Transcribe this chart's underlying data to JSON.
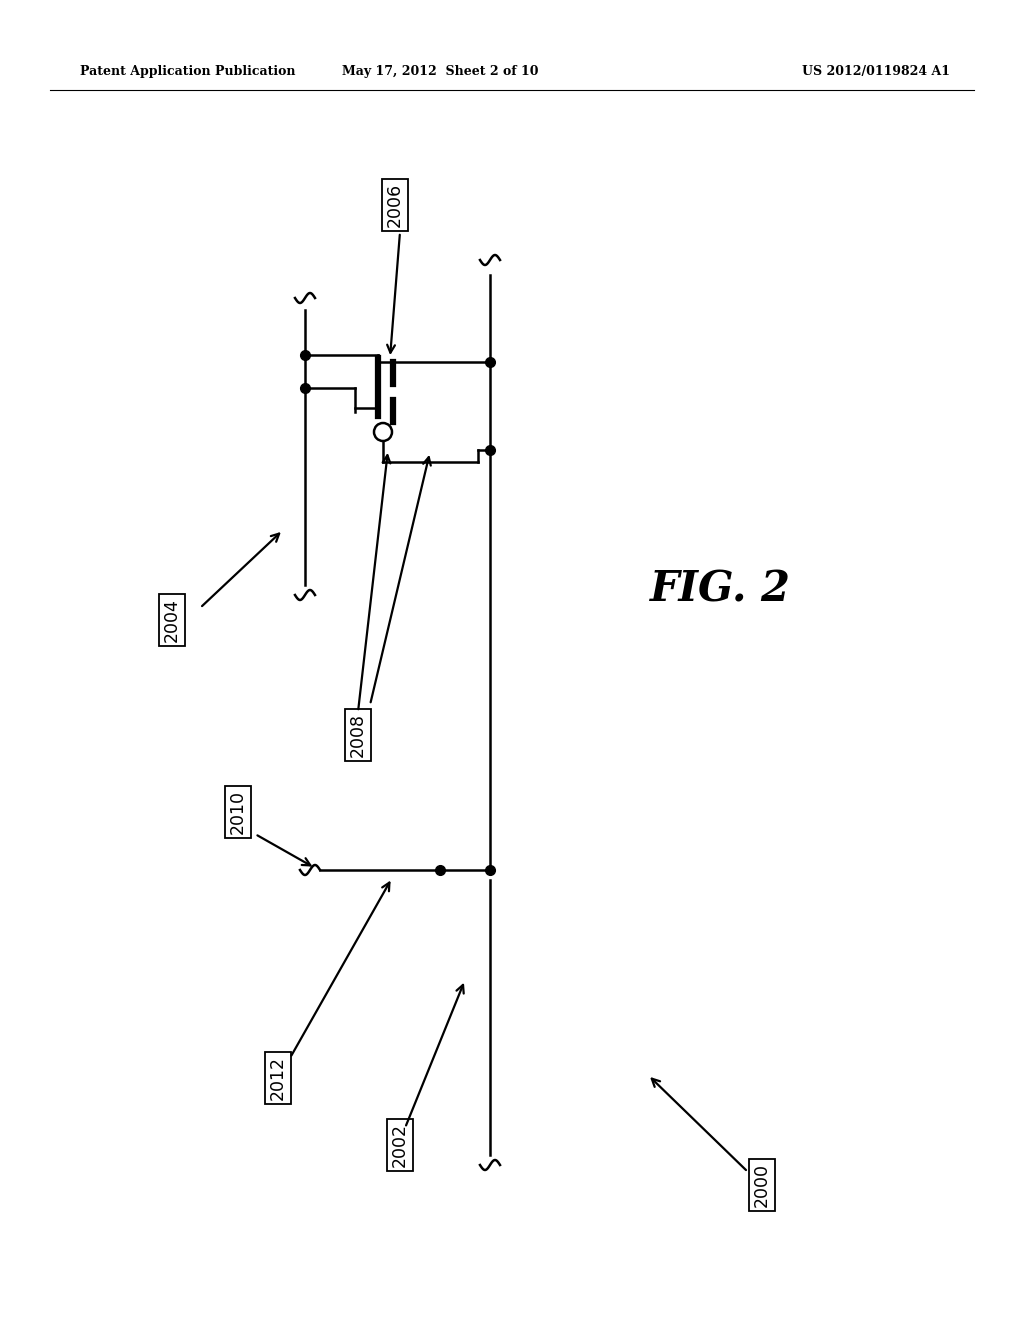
{
  "bg_color": "#ffffff",
  "header_left": "Patent Application Publication",
  "header_mid": "May 17, 2012  Sheet 2 of 10",
  "header_right": "US 2012/0119824 A1",
  "fig_label": "FIG. 2",
  "wire_color": "#000000",
  "lw": 1.8
}
